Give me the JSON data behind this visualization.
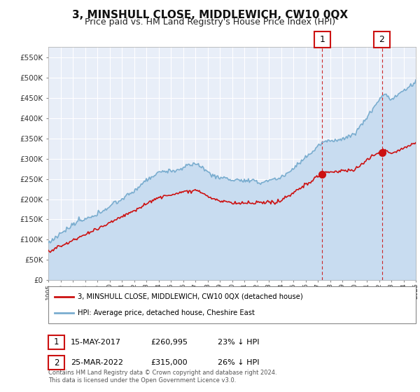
{
  "title": "3, MINSHULL CLOSE, MIDDLEWICH, CW10 0QX",
  "subtitle": "Price paid vs. HM Land Registry's House Price Index (HPI)",
  "title_fontsize": 11,
  "subtitle_fontsize": 9,
  "background_color": "#ffffff",
  "plot_bg_color": "#e8eef8",
  "grid_color": "#ffffff",
  "ylim": [
    0,
    575000
  ],
  "yticks": [
    0,
    50000,
    100000,
    150000,
    200000,
    250000,
    300000,
    350000,
    400000,
    450000,
    500000,
    550000
  ],
  "ytick_labels": [
    "£0",
    "£50K",
    "£100K",
    "£150K",
    "£200K",
    "£250K",
    "£300K",
    "£350K",
    "£400K",
    "£450K",
    "£500K",
    "£550K"
  ],
  "hpi_color": "#7aadcf",
  "hpi_fill_color": "#c8dcf0",
  "price_color": "#cc1111",
  "marker_color": "#cc1111",
  "annotation_box_color": "#cc1111",
  "legend_label_red": "3, MINSHULL CLOSE, MIDDLEWICH, CW10 0QX (detached house)",
  "legend_label_blue": "HPI: Average price, detached house, Cheshire East",
  "annotation_1_label": "1",
  "annotation_1_date": "15-MAY-2017",
  "annotation_1_price": "£260,995",
  "annotation_1_hpi": "23% ↓ HPI",
  "annotation_2_label": "2",
  "annotation_2_date": "25-MAR-2022",
  "annotation_2_price": "£315,000",
  "annotation_2_hpi": "26% ↓ HPI",
  "footer": "Contains HM Land Registry data © Crown copyright and database right 2024.\nThis data is licensed under the Open Government Licence v3.0.",
  "sale_1_x": 2017.37,
  "sale_1_y": 260995,
  "sale_2_x": 2022.23,
  "sale_2_y": 315000,
  "xmin": 1995,
  "xmax": 2025
}
